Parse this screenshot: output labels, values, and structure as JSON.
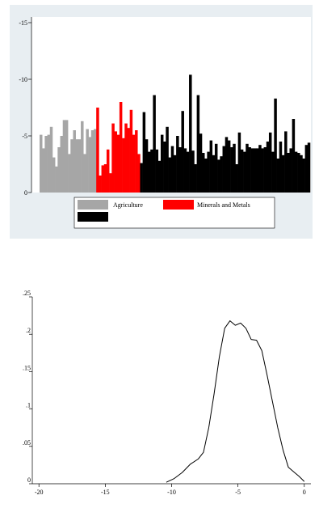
{
  "chart_data": [
    {
      "type": "bar",
      "title": "",
      "xlabel": "",
      "ylabel": "",
      "yaxis_reversed": true,
      "ylim": [
        0,
        -15.5
      ],
      "yticks": [
        0,
        -5,
        -10,
        -15
      ],
      "ytick_labels": [
        "0",
        "-5",
        "-10",
        "-15"
      ],
      "legend_placement": "bottom",
      "legend": [
        {
          "label": "Agriculture",
          "color": "#a6a6a6"
        },
        {
          "label": "Minerals and Metals",
          "color": "#ff0000"
        },
        {
          "label": "",
          "color": "#000000"
        }
      ],
      "series": [
        {
          "name": "Agriculture",
          "color": "#a6a6a6",
          "values": [
            -5.1,
            -3.9,
            -5.0,
            -5.1,
            -5.8,
            -3.1,
            -2.3,
            -4.0,
            -5.0,
            -6.4,
            -6.4,
            -3.4,
            -4.7,
            -5.5,
            -4.7,
            -4.7,
            -6.3,
            -3.4,
            -5.6,
            -4.9,
            -5.5,
            -5.6
          ]
        },
        {
          "name": "Minerals and Metals",
          "color": "#ff0000",
          "values": [
            -7.5,
            -1.5,
            -2.4,
            -2.5,
            -3.8,
            -1.7,
            -6.1,
            -5.4,
            -5.1,
            -8.0,
            -4.8,
            -6.1,
            -5.7,
            -7.3,
            -5.1,
            -5.5,
            -3.4
          ]
        },
        {
          "name": "",
          "color": "#000000",
          "values": [
            -2.6,
            -7.1,
            -4.7,
            -3.6,
            -3.8,
            -8.6,
            -3.8,
            -2.8,
            -5.1,
            -4.5,
            -5.8,
            -3.1,
            -4.1,
            -3.3,
            -5.0,
            -4.0,
            -7.2,
            -3.9,
            -3.6,
            -10.4,
            -3.7,
            -2.5,
            -8.6,
            -5.2,
            -3.5,
            -3.0,
            -3.6,
            -4.6,
            -3.3,
            -4.3,
            -2.9,
            -3.2,
            -4.1,
            -4.9,
            -4.6,
            -4.0,
            -4.3,
            -2.5,
            -5.3,
            -3.8,
            -3.6,
            -4.3,
            -4.0,
            -3.9,
            -3.9,
            -3.9,
            -4.2,
            -3.9,
            -4.0,
            -4.5,
            -5.3,
            -3.6,
            -8.3,
            -3.0,
            -4.5,
            -3.3,
            -5.4,
            -3.5,
            -3.9,
            -6.5,
            -3.6,
            -3.5,
            -3.3,
            -3.0,
            -4.2,
            -4.4
          ]
        }
      ],
      "grid": false
    },
    {
      "type": "line",
      "title": "",
      "xlabel": "",
      "ylabel": "",
      "xlim": [
        -20.5,
        0.5
      ],
      "ylim": [
        0,
        0.25
      ],
      "xticks": [
        -20,
        -15,
        -10,
        -5,
        0
      ],
      "xtick_labels": [
        "-20",
        "-15",
        "-10",
        "-5",
        "0"
      ],
      "yticks": [
        0,
        0.05,
        0.1,
        0.15,
        0.2,
        0.25
      ],
      "ytick_labels": [
        "0",
        ".05",
        ".1",
        ".15",
        ".2",
        ".25"
      ],
      "grid": false,
      "series": [
        {
          "name": "",
          "color": "#000000",
          "x": [
            -10.4,
            -9.8,
            -9.2,
            -8.6,
            -8.0,
            -7.6,
            -7.2,
            -6.8,
            -6.4,
            -6.0,
            -5.6,
            -5.2,
            -4.8,
            -4.4,
            -4.0,
            -3.6,
            -3.2,
            -2.8,
            -2.4,
            -2.0,
            -1.6,
            -1.2,
            -0.8,
            -0.4,
            0.0
          ],
          "y": [
            0.002,
            0.007,
            0.015,
            0.026,
            0.033,
            0.042,
            0.075,
            0.12,
            0.17,
            0.208,
            0.218,
            0.212,
            0.215,
            0.208,
            0.193,
            0.192,
            0.178,
            0.145,
            0.11,
            0.075,
            0.045,
            0.022,
            0.016,
            0.01,
            0.003
          ]
        }
      ]
    }
  ]
}
